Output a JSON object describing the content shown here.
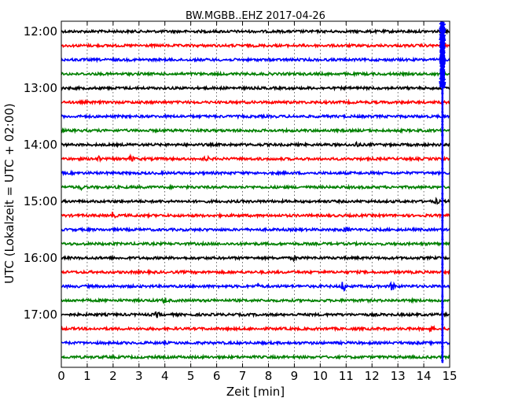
{
  "chart_data": {
    "type": "line",
    "title": "BW.MGBB..EHZ 2017-04-26",
    "xlabel": "Zeit  [min]",
    "ylabel": "UTC (Lokalzeit = UTC + 02:00)",
    "xlim": [
      0,
      15
    ],
    "x_ticks": [
      0,
      1,
      2,
      3,
      4,
      5,
      6,
      7,
      8,
      9,
      10,
      11,
      12,
      13,
      14,
      15
    ],
    "y_tick_labels": [
      "12:00",
      "13:00",
      "14:00",
      "15:00",
      "16:00",
      "17:00"
    ],
    "grid": true,
    "color_cycle": [
      "#000000",
      "#ff0000",
      "#0000ff",
      "#008000"
    ],
    "trace_start_times": [
      "12:00",
      "12:15",
      "12:30",
      "12:45",
      "13:00",
      "13:15",
      "13:30",
      "13:45",
      "14:00",
      "14:15",
      "14:30",
      "14:45",
      "15:00",
      "15:15",
      "15:30",
      "15:45",
      "16:00",
      "16:15",
      "16:30",
      "16:45",
      "17:00",
      "17:15",
      "17:30",
      "17:45"
    ],
    "events": [
      {
        "trace": 8,
        "minute": 11.4,
        "strength": 1.4
      },
      {
        "trace": 9,
        "minute": 1.4,
        "strength": 1.8
      },
      {
        "trace": 9,
        "minute": 2.7,
        "strength": 1.6
      },
      {
        "trace": 9,
        "minute": 5.6,
        "strength": 1.4
      },
      {
        "trace": 11,
        "minute": 0.8,
        "strength": 1.2
      },
      {
        "trace": 12,
        "minute": 14.5,
        "strength": 1.3
      },
      {
        "trace": 13,
        "minute": 2.0,
        "strength": 1.8
      },
      {
        "trace": 14,
        "minute": 11.0,
        "strength": 1.3
      },
      {
        "trace": 16,
        "minute": 9.0,
        "strength": 1.2
      },
      {
        "trace": 18,
        "minute": 7.6,
        "strength": 1.2
      },
      {
        "trace": 18,
        "minute": 10.9,
        "strength": 3.5
      },
      {
        "trace": 18,
        "minute": 12.8,
        "strength": 3.2
      },
      {
        "trace": 19,
        "minute": 4.0,
        "strength": 1.6
      },
      {
        "trace": 20,
        "minute": 3.7,
        "strength": 1.4
      },
      {
        "trace": 21,
        "minute": 14.3,
        "strength": 1.3
      }
    ],
    "vertical_segment": {
      "minute": 14.72,
      "from_trace": 0,
      "to_trace": 23,
      "color": "#0000ff"
    }
  }
}
